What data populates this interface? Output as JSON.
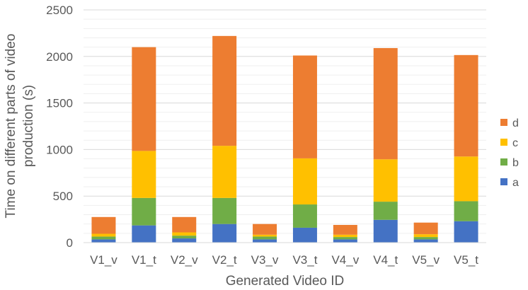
{
  "chart_data": {
    "type": "bar",
    "stacked": true,
    "title": "",
    "xlabel": "Generated Video ID",
    "ylabel_lines": [
      "Time on different parts of video",
      "production (s)"
    ],
    "ylim": [
      0,
      2500
    ],
    "yticks": [
      0,
      500,
      1000,
      1500,
      2000,
      2500
    ],
    "grid": true,
    "legend_position": "right",
    "categories": [
      "V1_v",
      "V1_t",
      "V2_v",
      "V2_t",
      "V3_v",
      "V3_t",
      "V4_v",
      "V4_t",
      "V5_v",
      "V5_t"
    ],
    "series": [
      {
        "name": "a",
        "color": "#4472C4",
        "values": [
          35,
          185,
          45,
          200,
          35,
          160,
          35,
          245,
          35,
          230
        ]
      },
      {
        "name": "b",
        "color": "#70AD47",
        "values": [
          30,
          295,
          30,
          280,
          30,
          250,
          25,
          195,
          25,
          215
        ]
      },
      {
        "name": "c",
        "color": "#FFC000",
        "values": [
          30,
          505,
          35,
          560,
          20,
          495,
          25,
          455,
          30,
          480
        ]
      },
      {
        "name": "d",
        "color": "#ED7D31",
        "values": [
          180,
          1115,
          165,
          1180,
          115,
          1105,
          105,
          1195,
          125,
          1090
        ]
      }
    ]
  }
}
